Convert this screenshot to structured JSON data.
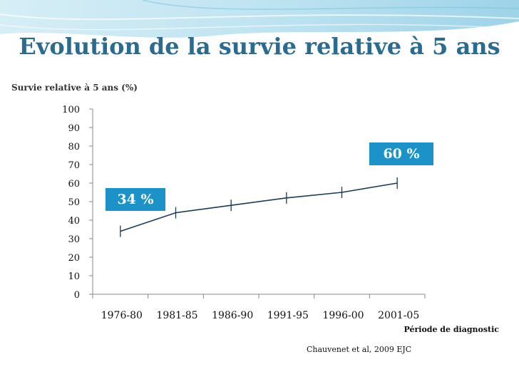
{
  "slide": {
    "title": "Evolution de la survie relative à 5 ans",
    "source": "Chauvenet et al, 2009 EJC"
  },
  "colors": {
    "accent": "#1b93c9",
    "title": "#2a6b8f",
    "line": "#1a3a5c"
  },
  "chart_data": {
    "type": "line",
    "ylabel": "Survie relative à 5 ans (%)",
    "xlabel": "Période de diagnostic",
    "categories": [
      "1976-80",
      "1981-85",
      "1986-90",
      "1991-95",
      "1996-00",
      "2001-05"
    ],
    "series": [
      {
        "values": [
          34,
          44,
          48,
          52,
          55,
          60
        ]
      }
    ],
    "ylim": [
      0,
      100
    ],
    "yticks": [
      0,
      10,
      20,
      30,
      40,
      50,
      60,
      70,
      80,
      90,
      100
    ],
    "grid": false,
    "annotations": [
      {
        "text": "34 %"
      },
      {
        "text": "60 %"
      }
    ]
  }
}
